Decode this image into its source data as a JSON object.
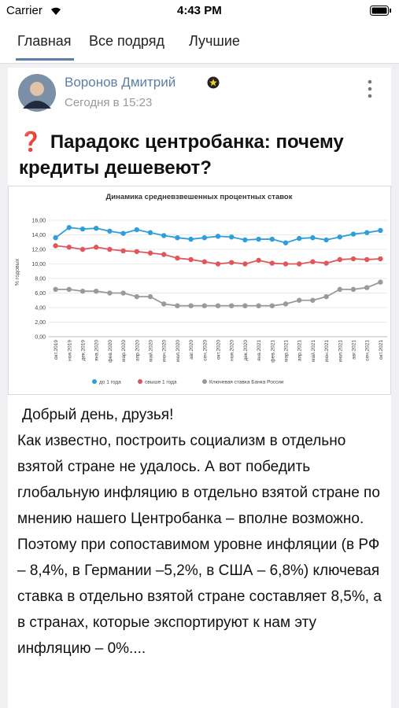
{
  "status_bar": {
    "carrier": "Carrier",
    "time": "4:43 PM"
  },
  "tabs": [
    "Главная",
    "Все подряд",
    "Лучшие"
  ],
  "post": {
    "author": "Воронов Дмитрий",
    "time": "Сегодня в 15:23",
    "title_icon": "❓",
    "title": "Парадокс центробанка: почему кредиты дешевеют?",
    "chart": {
      "type": "line",
      "title": "Динамика средневзвешенных процентных ставок",
      "ylabel": "% годовых",
      "categories": [
        "окт.2019",
        "ноя.2019",
        "дек.2019",
        "янв.2020",
        "фев.2020",
        "мар.2020",
        "апр.2020",
        "май.2020",
        "июн.2020",
        "июл.2020",
        "авг.2020",
        "сен.2020",
        "окт.2020",
        "ноя.2020",
        "дек.2020",
        "янв.2021",
        "фев.2021",
        "мар.2021",
        "апр.2021",
        "май.2021",
        "июн.2021",
        "июл.2021",
        "авг.2021",
        "сен.2021",
        "окт.2021"
      ],
      "series": [
        {
          "name": "до 1 года",
          "color": "#2e9fd8",
          "values": [
            13.6,
            15.0,
            14.8,
            14.9,
            14.5,
            14.2,
            14.7,
            14.3,
            13.9,
            13.6,
            13.4,
            13.6,
            13.8,
            13.7,
            13.3,
            13.4,
            13.4,
            12.9,
            13.5,
            13.6,
            13.3,
            13.7,
            14.1,
            14.3,
            14.6
          ]
        },
        {
          "name": "свыше 1 года",
          "color": "#e0575b",
          "values": [
            12.5,
            12.3,
            12.0,
            12.3,
            12.0,
            11.8,
            11.7,
            11.5,
            11.3,
            10.8,
            10.6,
            10.3,
            10.0,
            10.2,
            10.0,
            10.5,
            10.1,
            10.0,
            10.0,
            10.3,
            10.1,
            10.6,
            10.7,
            10.6,
            10.7
          ]
        },
        {
          "name": "Ключевая ставка Банка России",
          "color": "#9a9a9a",
          "values": [
            6.5,
            6.5,
            6.25,
            6.25,
            6.0,
            6.0,
            5.5,
            5.5,
            4.5,
            4.25,
            4.25,
            4.25,
            4.25,
            4.25,
            4.25,
            4.25,
            4.25,
            4.5,
            5.0,
            5.0,
            5.5,
            6.5,
            6.5,
            6.75,
            7.5
          ]
        }
      ],
      "ylim": [
        0,
        16
      ],
      "yticks": [
        {
          "value": 0,
          "label": "0,00"
        },
        {
          "value": 2,
          "label": "2,00"
        },
        {
          "value": 4,
          "label": "4,00"
        },
        {
          "value": 6,
          "label": "6,00"
        },
        {
          "value": 8,
          "label": "8,00"
        },
        {
          "value": 10,
          "label": "10,00"
        },
        {
          "value": 12,
          "label": "12,00"
        },
        {
          "value": 14,
          "label": "14,00"
        },
        {
          "value": 16,
          "label": "16,00"
        }
      ],
      "grid": true
    },
    "body": [
      "Добрый день, друзья!",
      "Как известно, построить социализм в отдельно взятой стране не удалось. А вот победить глобальную инфляцию в отдельно взятой стране по мнению нашего Центробанка – вполне возможно.",
      "Поэтому при сопоставимом уровне инфляции (в РФ – 8,4%, в Германии –5,2%, в США – 6,8%) ключевая ставка в отдельно взятой стране составляет 8,5%, а в странах, которые экспортируют к нам эту инфляцию – 0%...."
    ]
  }
}
